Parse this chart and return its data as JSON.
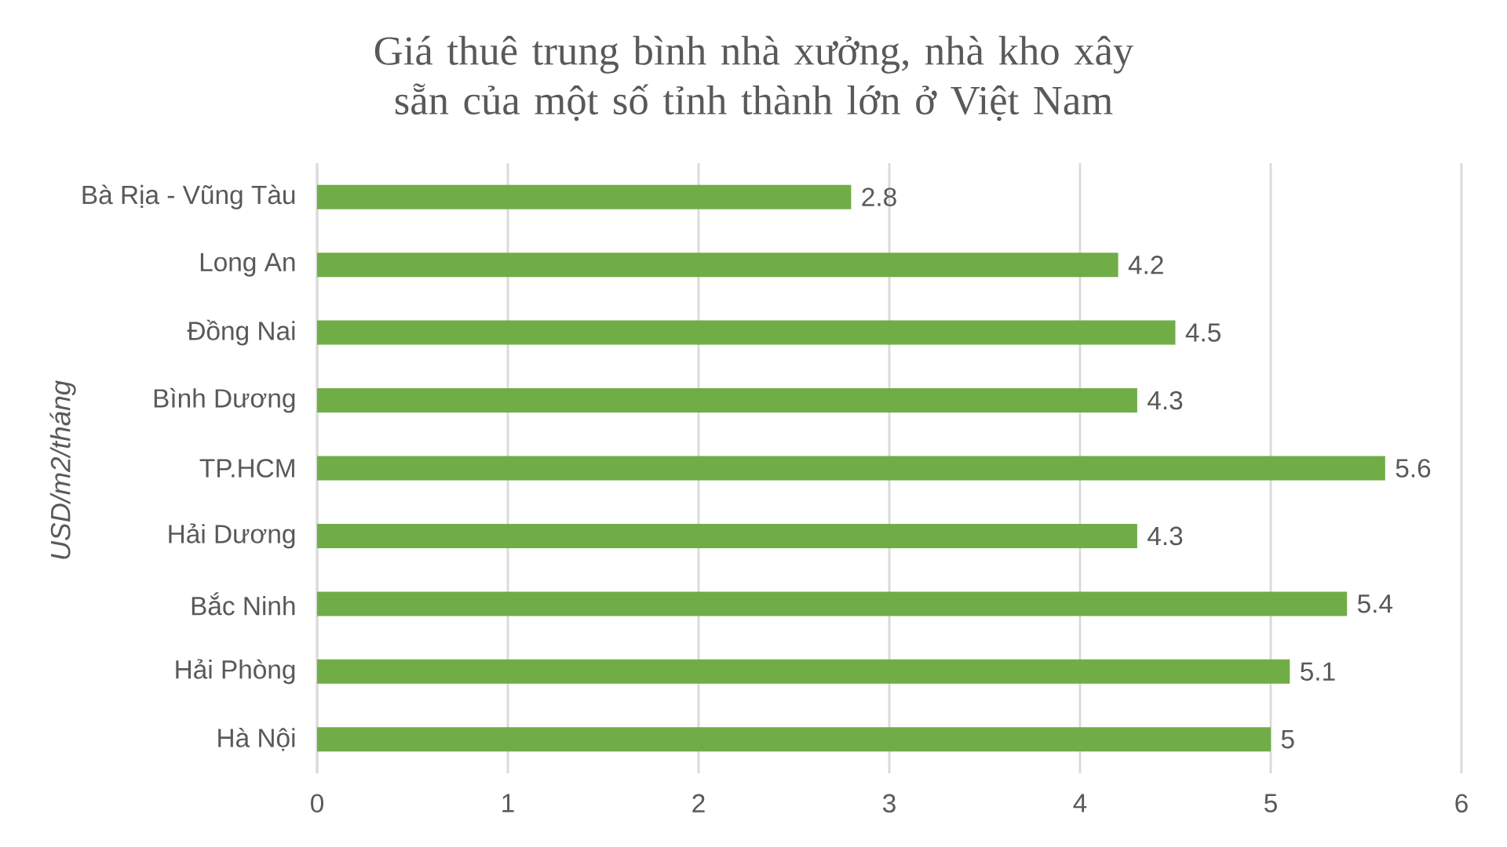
{
  "chart_data": {
    "type": "bar",
    "orientation": "horizontal",
    "title": "Giá thuê trung bình nhà xưởng, nhà kho xây sẵn của một số tỉnh thành lớn ở Việt Nam",
    "ylabel": "USD/m2/tháng",
    "categories": [
      "Bà Rịa - Vũng Tàu",
      "Long An",
      "Đồng Nai",
      "Bình Dương",
      "TP.HCM",
      "Hải Dương",
      "Bắc Ninh",
      "Hải Phòng",
      "Hà Nội"
    ],
    "values": [
      2.8,
      4.2,
      4.5,
      4.3,
      5.6,
      4.3,
      5.4,
      5.1,
      5
    ],
    "color": "#70ad47",
    "xlim": [
      0,
      6
    ],
    "xticks": [
      0,
      1,
      2,
      3,
      4,
      5,
      6
    ],
    "grid": "x",
    "data_labels": true
  }
}
